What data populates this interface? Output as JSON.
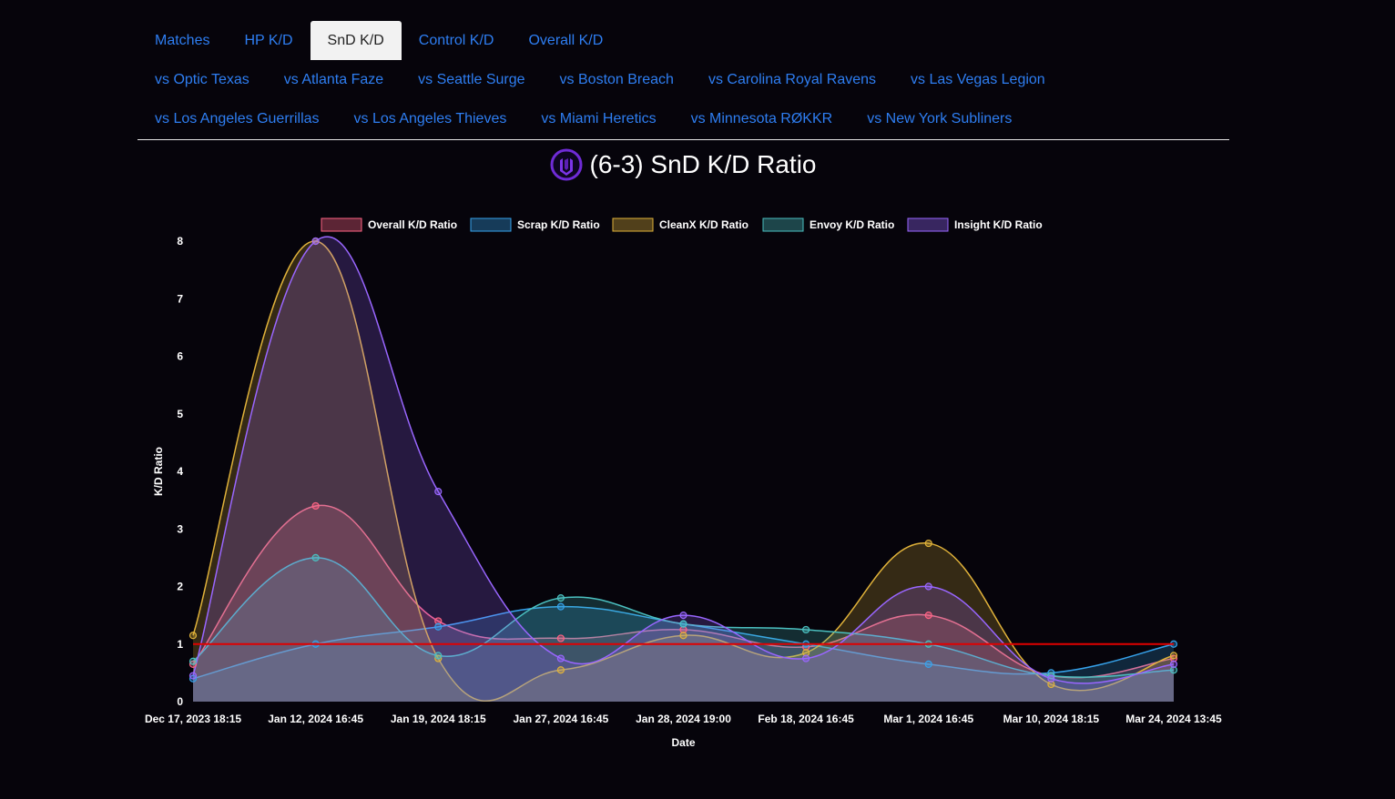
{
  "nav": {
    "rows": [
      [
        {
          "label": "Matches",
          "active": false
        },
        {
          "label": "HP K/D",
          "active": false
        },
        {
          "label": "SnD K/D",
          "active": true
        },
        {
          "label": "Control K/D",
          "active": false
        },
        {
          "label": "Overall K/D",
          "active": false
        }
      ],
      [
        {
          "label": "vs Optic Texas",
          "active": false
        },
        {
          "label": "vs Atlanta Faze",
          "active": false
        },
        {
          "label": "vs Seattle Surge",
          "active": false
        },
        {
          "label": "vs Boston Breach",
          "active": false
        },
        {
          "label": "vs Carolina Royal Ravens",
          "active": false
        },
        {
          "label": "vs Las Vegas Legion",
          "active": false
        }
      ],
      [
        {
          "label": "vs Los Angeles Guerrillas",
          "active": false
        },
        {
          "label": "vs Los Angeles Thieves",
          "active": false
        },
        {
          "label": "vs Miami Heretics",
          "active": false
        },
        {
          "label": "vs Minnesota RØKKR",
          "active": false
        },
        {
          "label": "vs New York Subliners",
          "active": false
        }
      ]
    ]
  },
  "page": {
    "title": "(6-3) SnD K/D Ratio",
    "logo_icon": "team-logo-icon",
    "logo_color": "#6f2bd6"
  },
  "chart_data": {
    "type": "area",
    "xlabel": "Date",
    "ylabel": "K/D Ratio",
    "ylim": [
      0,
      8
    ],
    "yticks": [
      0,
      1,
      2,
      3,
      4,
      5,
      6,
      7,
      8
    ],
    "legend_position": "top",
    "categories": [
      "Dec 17, 2023 18:15",
      "Jan 12, 2024 16:45",
      "Jan 19, 2024 18:15",
      "Jan 27, 2024 16:45",
      "Jan 28, 2024 19:00",
      "Feb 18, 2024 16:45",
      "Mar 1, 2024 16:45",
      "Mar 10, 2024 18:15",
      "Mar 24, 2024 13:45"
    ],
    "series": [
      {
        "name": "Overall K/D Ratio",
        "color": "#ff6384",
        "values": [
          0.65,
          3.4,
          1.4,
          1.1,
          1.25,
          0.95,
          1.5,
          0.45,
          0.75
        ]
      },
      {
        "name": "Scrap K/D Ratio",
        "color": "#36a2eb",
        "values": [
          0.4,
          1.0,
          1.3,
          1.65,
          1.35,
          1.0,
          0.65,
          0.5,
          1.0
        ]
      },
      {
        "name": "CleanX K/D Ratio",
        "color": "#e0b23a",
        "values": [
          1.15,
          8.0,
          0.75,
          0.55,
          1.15,
          0.85,
          2.75,
          0.3,
          0.8
        ]
      },
      {
        "name": "Envoy K/D Ratio",
        "color": "#4bc0c0",
        "values": [
          0.7,
          2.5,
          0.8,
          1.8,
          1.35,
          1.25,
          1.0,
          0.45,
          0.55
        ]
      },
      {
        "name": "Insight K/D Ratio",
        "color": "#9966ff",
        "values": [
          0.45,
          8.0,
          3.65,
          0.75,
          1.5,
          0.75,
          2.0,
          0.4,
          0.65
        ]
      }
    ],
    "reference_line": {
      "value": 1,
      "color": "#e00000"
    }
  }
}
